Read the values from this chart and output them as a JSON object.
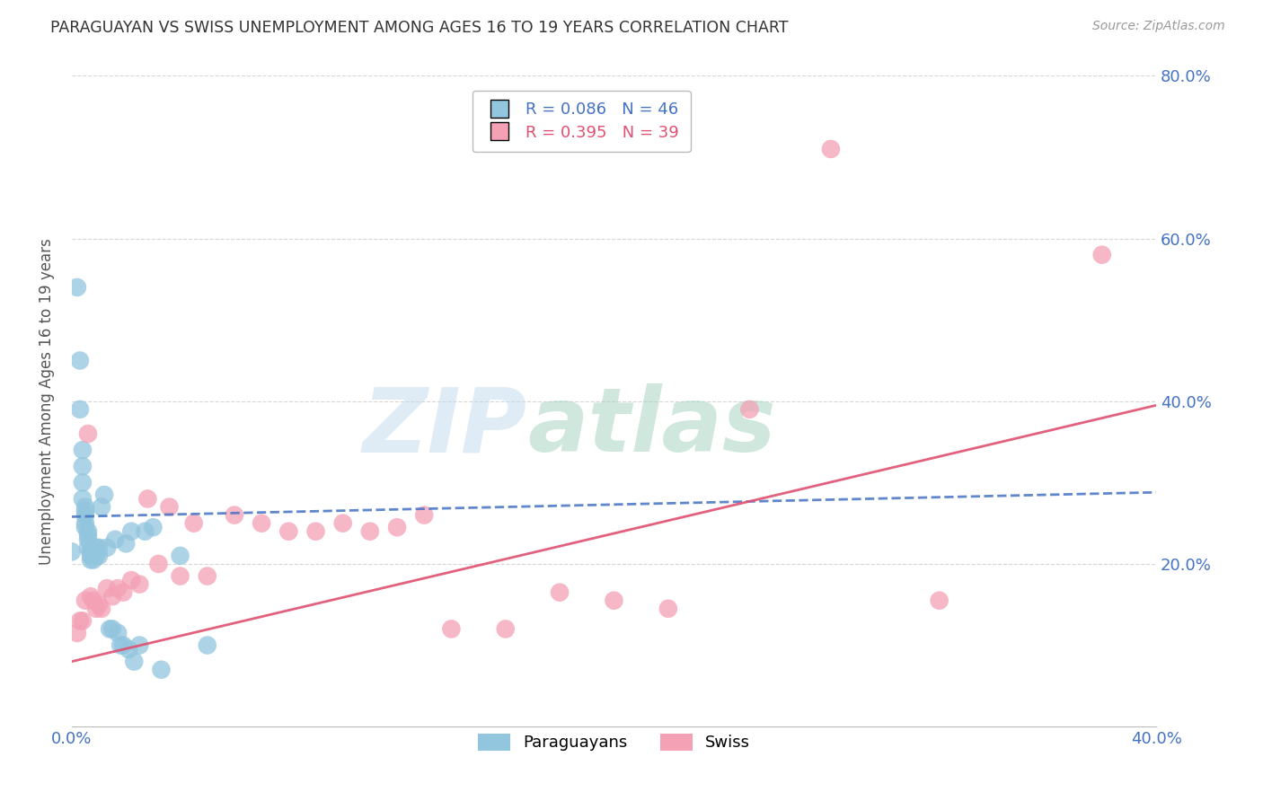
{
  "title": "PARAGUAYAN VS SWISS UNEMPLOYMENT AMONG AGES 16 TO 19 YEARS CORRELATION CHART",
  "source": "Source: ZipAtlas.com",
  "ylabel": "Unemployment Among Ages 16 to 19 years",
  "xlim": [
    0.0,
    0.4
  ],
  "ylim": [
    0.0,
    0.8
  ],
  "xtick_vals": [
    0.0,
    0.4
  ],
  "xtick_labels": [
    "0.0%",
    "40.0%"
  ],
  "ytick_vals": [
    0.2,
    0.4,
    0.6,
    0.8
  ],
  "ytick_labels": [
    "20.0%",
    "40.0%",
    "60.0%",
    "80.0%"
  ],
  "paraguayan_color": "#92c5de",
  "swiss_color": "#f4a0b5",
  "trendline_paraguayan_color": "#4472c4",
  "trendline_swiss_color": "#e05070",
  "background_color": "#ffffff",
  "grid_color": "#cccccc",
  "watermark_zip": "ZIP",
  "watermark_atlas": "atlas",
  "legend_r1": "R = 0.086",
  "legend_n1": "N = 46",
  "legend_r2": "R = 0.395",
  "legend_n2": "N = 39",
  "par_x": [
    0.0,
    0.002,
    0.003,
    0.003,
    0.004,
    0.004,
    0.004,
    0.004,
    0.005,
    0.005,
    0.005,
    0.005,
    0.005,
    0.006,
    0.006,
    0.006,
    0.006,
    0.007,
    0.007,
    0.007,
    0.007,
    0.008,
    0.008,
    0.009,
    0.009,
    0.01,
    0.01,
    0.011,
    0.012,
    0.013,
    0.014,
    0.015,
    0.016,
    0.017,
    0.018,
    0.019,
    0.02,
    0.021,
    0.022,
    0.023,
    0.025,
    0.027,
    0.03,
    0.033,
    0.04,
    0.05
  ],
  "par_y": [
    0.215,
    0.54,
    0.45,
    0.39,
    0.34,
    0.32,
    0.3,
    0.28,
    0.27,
    0.265,
    0.26,
    0.25,
    0.245,
    0.24,
    0.235,
    0.23,
    0.22,
    0.215,
    0.215,
    0.21,
    0.205,
    0.215,
    0.205,
    0.22,
    0.21,
    0.22,
    0.21,
    0.27,
    0.285,
    0.22,
    0.12,
    0.12,
    0.23,
    0.115,
    0.1,
    0.1,
    0.225,
    0.095,
    0.24,
    0.08,
    0.1,
    0.24,
    0.245,
    0.07,
    0.21,
    0.1
  ],
  "swi_x": [
    0.002,
    0.003,
    0.004,
    0.005,
    0.006,
    0.007,
    0.008,
    0.009,
    0.01,
    0.011,
    0.013,
    0.015,
    0.017,
    0.019,
    0.022,
    0.025,
    0.028,
    0.032,
    0.036,
    0.04,
    0.045,
    0.05,
    0.06,
    0.07,
    0.08,
    0.09,
    0.1,
    0.11,
    0.12,
    0.13,
    0.14,
    0.16,
    0.18,
    0.2,
    0.22,
    0.25,
    0.28,
    0.32,
    0.38
  ],
  "swi_y": [
    0.115,
    0.13,
    0.13,
    0.155,
    0.36,
    0.16,
    0.155,
    0.145,
    0.15,
    0.145,
    0.17,
    0.16,
    0.17,
    0.165,
    0.18,
    0.175,
    0.28,
    0.2,
    0.27,
    0.185,
    0.25,
    0.185,
    0.26,
    0.25,
    0.24,
    0.24,
    0.25,
    0.24,
    0.245,
    0.26,
    0.12,
    0.12,
    0.165,
    0.155,
    0.145,
    0.39,
    0.71,
    0.155,
    0.58
  ],
  "par_trend_x": [
    0.0,
    0.4
  ],
  "par_trend_y": [
    0.258,
    0.288
  ],
  "swi_trend_x": [
    0.0,
    0.4
  ],
  "swi_trend_y": [
    0.08,
    0.395
  ]
}
